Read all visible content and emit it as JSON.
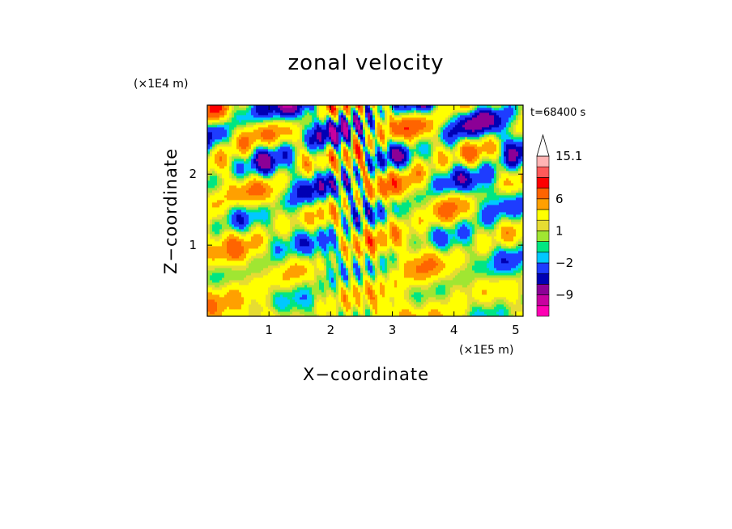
{
  "chart_data": {
    "type": "heatmap",
    "title": "zonal velocity",
    "xlabel": "X−coordinate",
    "ylabel": "Z−coordinate",
    "x_multiplier": "(×1E5 m)",
    "y_multiplier": "(×1E4 m)",
    "time_label": "t=68400 s",
    "xlim": [
      0,
      5.12
    ],
    "ylim": [
      0,
      2.97
    ],
    "x_ticks": [
      {
        "value": 1,
        "label": "1"
      },
      {
        "value": 2,
        "label": "2"
      },
      {
        "value": 3,
        "label": "3"
      },
      {
        "value": 4,
        "label": "4"
      },
      {
        "value": 5,
        "label": "5"
      }
    ],
    "y_ticks": [
      {
        "value": 1,
        "label": "1"
      },
      {
        "value": 2,
        "label": "2"
      }
    ],
    "colorbar": {
      "levels": [
        -15,
        -12,
        -9,
        -6,
        -4,
        -2,
        -1,
        0,
        1,
        2,
        4,
        6,
        9,
        12,
        15.1
      ],
      "colors": [
        "#ff00b4",
        "#c800a0",
        "#8c0096",
        "#0000b4",
        "#1e3cff",
        "#00c8ff",
        "#00e682",
        "#a0e632",
        "#e6dc32",
        "#ffff00",
        "#ffa000",
        "#ff6400",
        "#ff0000",
        "#ff5a5a",
        "#ffb4b4"
      ],
      "labels": [
        {
          "value": 15.1,
          "label": "15.1"
        },
        {
          "value": 6,
          "label": "6"
        },
        {
          "value": 1,
          "label": "1"
        },
        {
          "value": -2,
          "label": "−2"
        },
        {
          "value": -9,
          "label": "−9"
        }
      ],
      "extend_max": true
    }
  }
}
